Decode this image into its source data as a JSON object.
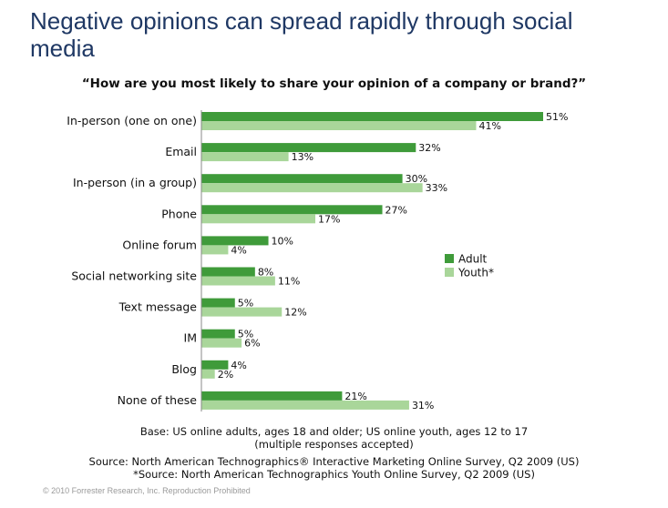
{
  "slide": {
    "title": "Negative opinions can spread rapidly through social media",
    "copyright": "© 2010 Forrester Research, Inc. Reproduction Prohibited"
  },
  "chart_data": {
    "type": "bar",
    "orientation": "horizontal",
    "title": "“How are you most likely to share your opinion of a company or brand?”",
    "categories": [
      "In-person (one on one)",
      "Email",
      "In-person (in a group)",
      "Phone",
      "Online forum",
      "Social networking site",
      "Text message",
      "IM",
      "Blog",
      "None of these"
    ],
    "series": [
      {
        "name": "Adult",
        "color": "#3f9b3a",
        "values": [
          51,
          32,
          30,
          27,
          10,
          8,
          5,
          5,
          4,
          21
        ]
      },
      {
        "name": "Youth*",
        "color": "#a9d69a",
        "values": [
          41,
          13,
          33,
          17,
          4,
          11,
          12,
          6,
          2,
          31
        ]
      }
    ],
    "value_suffix": "%",
    "xlim": [
      0,
      51
    ],
    "grid": false,
    "legend_position": "right"
  },
  "notes": {
    "base_line1": "Base: US online adults, ages 18 and older; US online youth, ages 12 to 17",
    "base_line2": "(multiple responses accepted)",
    "source1": "Source: North American Technographics® Interactive Marketing Online Survey, Q2 2009 (US)",
    "source2": "*Source: North American Technographics Youth Online Survey, Q2 2009 (US)"
  }
}
